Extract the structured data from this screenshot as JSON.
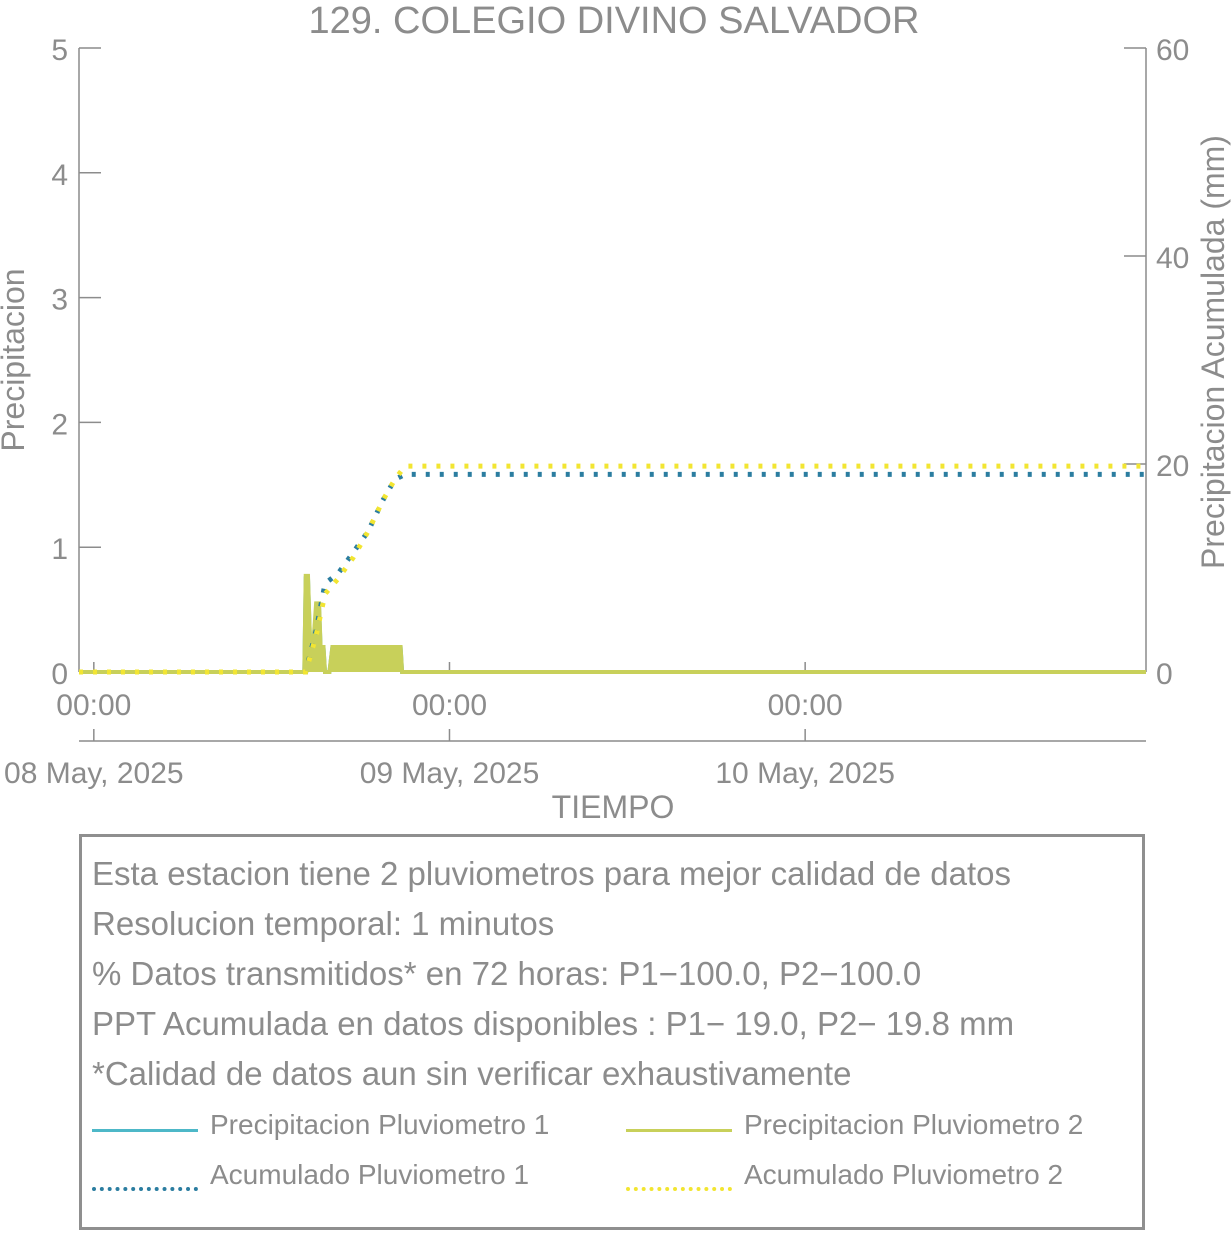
{
  "chart_data": {
    "type": "line",
    "title": "129. COLEGIO DIVINO SALVADOR",
    "xlabel": "TIEMPO",
    "ylabel_left": "Precipitacion",
    "ylabel_right": "Precipitacion Acumulada (mm)",
    "x_unit": "hours since 08 May, 2025 00:00",
    "xlim": [
      -1,
      71
    ],
    "ylim_left": [
      0,
      5
    ],
    "ylim_right": [
      0,
      60
    ],
    "yticks_left": [
      "0",
      "1",
      "2",
      "3",
      "4",
      "5"
    ],
    "yticks_right": [
      "0",
      "20",
      "40",
      "60"
    ],
    "xticks": [
      {
        "x": 0,
        "time": "00:00",
        "date": "08 May, 2025"
      },
      {
        "x": 24,
        "time": "00:00",
        "date": "09 May, 2025"
      },
      {
        "x": 48,
        "time": "00:00",
        "date": "10 May, 2025"
      }
    ],
    "series": [
      {
        "name": "Precipitacion Pluviometro 1",
        "axis": "left",
        "style": "solid",
        "color": "#4db8c8",
        "x": [
          -1,
          14.2,
          14.3,
          14.45,
          14.6,
          14.8,
          15.0,
          15.2,
          15.3,
          15.5,
          15.6,
          15.9,
          16.1,
          16.3,
          20.7,
          20.8,
          71
        ],
        "y": [
          0,
          0,
          0.75,
          0.75,
          0.2,
          0.2,
          0.5,
          0.5,
          0.2,
          0.2,
          0,
          0,
          0.2,
          0.2,
          0.2,
          0,
          0
        ]
      },
      {
        "name": "Precipitacion Pluviometro 2",
        "axis": "left",
        "style": "solid",
        "color": "#c8d05a",
        "x": [
          -1,
          14.2,
          14.3,
          14.45,
          14.6,
          14.8,
          15.0,
          15.2,
          15.3,
          15.5,
          15.6,
          15.9,
          16.1,
          16.3,
          20.7,
          20.8,
          71
        ],
        "y": [
          0,
          0,
          0.77,
          0.77,
          0.2,
          0.2,
          0.55,
          0.55,
          0.2,
          0.2,
          0,
          0,
          0.2,
          0.2,
          0.2,
          0,
          0
        ]
      },
      {
        "name": "Acumulado Pluviometro 1",
        "axis": "right",
        "style": "dotted",
        "color": "#2b7da0",
        "x": [
          -1,
          14.3,
          15.0,
          15.6,
          16.5,
          17.5,
          18.5,
          19.5,
          20.3,
          21.0,
          71
        ],
        "y": [
          0,
          0,
          4,
          8.5,
          9.5,
          11.5,
          13.5,
          16.5,
          18.5,
          19.0,
          19.0
        ]
      },
      {
        "name": "Acumulado Pluviometro 2",
        "axis": "right",
        "style": "dotted",
        "color": "#f2e531",
        "x": [
          -1,
          14.3,
          15.0,
          15.6,
          16.5,
          17.5,
          18.5,
          19.5,
          20.3,
          21.0,
          71
        ],
        "y": [
          0,
          0,
          3.5,
          7.5,
          9.0,
          11.0,
          13.5,
          16.5,
          18.5,
          19.8,
          19.8
        ]
      }
    ],
    "legend_position": "bottom box",
    "grid": false
  },
  "info": {
    "line1": "Esta estacion tiene 2 pluviometros para mejor calidad de datos",
    "line2": "Resolucion temporal: 1 minutos",
    "line3": "% Datos transmitidos* en 72 horas: P1−100.0, P2−100.0",
    "line4": "PPT Acumulada en datos disponibles : P1− 19.0, P2− 19.8 mm",
    "line5": "*Calidad de datos aun sin verificar exhaustivamente"
  },
  "legend": {
    "p1": "Precipitacion Pluviometro 1",
    "p2": "Precipitacion Pluviometro 2",
    "a1": "Acumulado Pluviometro 1",
    "a2": "Acumulado Pluviometro 2"
  },
  "colors": {
    "p1": "#4db8c8",
    "p2": "#c8d05a",
    "a1": "#2b7da0",
    "a2": "#f2e531",
    "axis": "#8c8c8c"
  }
}
